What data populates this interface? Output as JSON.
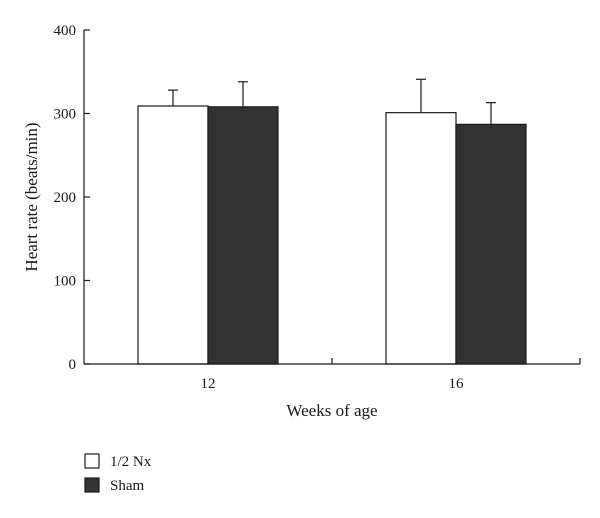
{
  "chart_data": {
    "type": "bar",
    "categories": [
      "12",
      "16"
    ],
    "series": [
      {
        "name": "1/2 Nx",
        "values": [
          309,
          301
        ],
        "errors": [
          19,
          40
        ],
        "color": "#ffffff"
      },
      {
        "name": "Sham",
        "values": [
          308,
          287
        ],
        "errors": [
          30,
          26
        ],
        "color": "#333333"
      }
    ],
    "xlabel": "Weeks of age",
    "ylabel": "Heart rate (beats/min)",
    "ylim": [
      0,
      400
    ],
    "yticks": [
      "0",
      "100",
      "200",
      "300",
      "400"
    ],
    "grid": false,
    "legend_position": "bottom-left"
  }
}
